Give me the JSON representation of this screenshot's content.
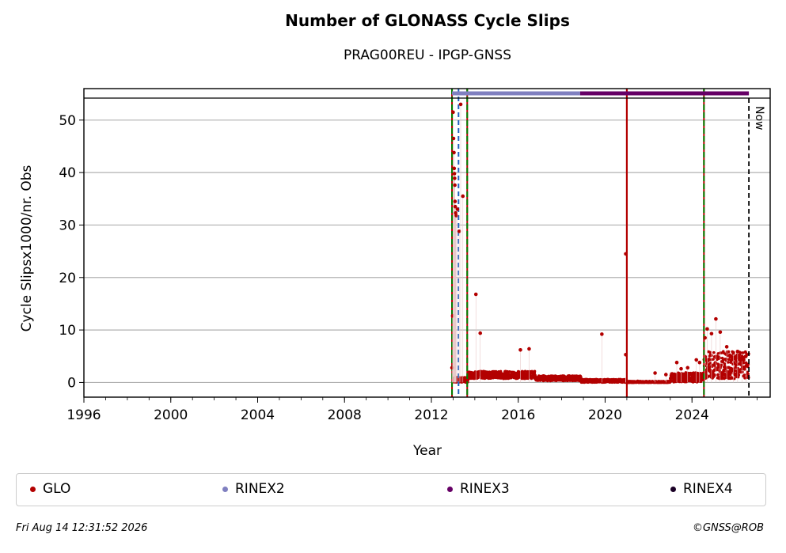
{
  "chart_data": {
    "type": "scatter",
    "title": "Number of GLONASS Cycle Slips",
    "subtitle": "PRAG00REU - IPGP-GNSS",
    "xlabel": "Year",
    "ylabel": "Cycle Slipsx1000/nr. Obs",
    "xlim": [
      1996,
      2027.6
    ],
    "ylim": [
      -2.8,
      56
    ],
    "xticks": [
      "1996",
      "2000",
      "2004",
      "2008",
      "2012",
      "2016",
      "2020",
      "2024"
    ],
    "yticks": [
      "0",
      "10",
      "20",
      "30",
      "40",
      "50"
    ],
    "grid": "horizontal",
    "legend_position": "bottom",
    "now_label": "Now",
    "now_year": 2026.62,
    "vertical_lines": [
      {
        "year": 2012.95,
        "color": "#008000",
        "style": "dash-dot"
      },
      {
        "year": 2013.25,
        "color": "#1f5fbf",
        "style": "dashed"
      },
      {
        "year": 2013.65,
        "color": "#008000",
        "style": "dash-dot"
      },
      {
        "year": 2021.0,
        "color": "#b30000",
        "style": "solid"
      },
      {
        "year": 2024.55,
        "color": "#008000",
        "style": "dash-dot"
      }
    ],
    "rinex_bars": [
      {
        "name": "RINEX2",
        "from": 2012.95,
        "to": 2018.85,
        "color": "#8080c0"
      },
      {
        "name": "RINEX3",
        "from": 2018.85,
        "to": 2026.62,
        "color": "#660066"
      }
    ],
    "series": [
      {
        "name": "GLO",
        "color": "#b30000",
        "points": [
          [
            2012.95,
            2.8
          ],
          [
            2012.98,
            12.7
          ],
          [
            2013.0,
            51.5
          ],
          [
            2013.02,
            46.5
          ],
          [
            2013.04,
            43.8
          ],
          [
            2013.05,
            40.8
          ],
          [
            2013.06,
            39.8
          ],
          [
            2013.07,
            38.9
          ],
          [
            2013.08,
            37.6
          ],
          [
            2013.09,
            34.5
          ],
          [
            2013.1,
            33.5
          ],
          [
            2013.12,
            32.3
          ],
          [
            2013.15,
            31.8
          ],
          [
            2013.2,
            33.0
          ],
          [
            2013.28,
            28.8
          ],
          [
            2013.35,
            53.0
          ],
          [
            2013.45,
            35.5
          ],
          [
            2014.05,
            16.8
          ],
          [
            2014.25,
            9.4
          ],
          [
            2016.1,
            6.2
          ],
          [
            2016.5,
            6.4
          ],
          [
            2019.85,
            9.2
          ],
          [
            2020.95,
            24.5
          ],
          [
            2020.95,
            5.3
          ],
          [
            2021.5,
            0.2
          ],
          [
            2022.3,
            1.8
          ],
          [
            2022.8,
            1.5
          ],
          [
            2023.3,
            3.8
          ],
          [
            2023.5,
            2.6
          ],
          [
            2023.8,
            2.8
          ],
          [
            2024.2,
            4.3
          ],
          [
            2024.35,
            3.8
          ],
          [
            2024.6,
            8.5
          ],
          [
            2024.7,
            10.2
          ],
          [
            2024.9,
            9.3
          ],
          [
            2025.1,
            12.1
          ],
          [
            2025.3,
            9.6
          ],
          [
            2025.6,
            6.8
          ],
          [
            2025.9,
            5.7
          ],
          [
            2026.1,
            5.9
          ],
          [
            2026.3,
            4.4
          ],
          [
            2026.5,
            3.2
          ]
        ],
        "bands": [
          {
            "from": 2013.0,
            "to": 2013.7,
            "mean": 0.4,
            "spread": 0.5
          },
          {
            "from": 2013.7,
            "to": 2016.8,
            "mean": 1.3,
            "spread": 0.7
          },
          {
            "from": 2016.8,
            "to": 2018.9,
            "mean": 0.7,
            "spread": 0.5
          },
          {
            "from": 2018.9,
            "to": 2021.0,
            "mean": 0.25,
            "spread": 0.3
          },
          {
            "from": 2021.0,
            "to": 2023.0,
            "mean": 0.05,
            "spread": 0.15
          },
          {
            "from": 2023.0,
            "to": 2024.55,
            "mean": 0.8,
            "spread": 0.9
          },
          {
            "from": 2024.55,
            "to": 2026.62,
            "mean": 2.8,
            "spread": 2.6
          }
        ]
      }
    ]
  },
  "legend": [
    {
      "label": "GLO",
      "color": "#b30000"
    },
    {
      "label": "RINEX2",
      "color": "#8080c0"
    },
    {
      "label": "RINEX3",
      "color": "#660066"
    },
    {
      "label": "RINEX4",
      "color": "#1a0026"
    }
  ],
  "footer": {
    "timestamp": "Fri Aug 14 12:31:52 2026",
    "credit": "©GNSS@ROB"
  }
}
